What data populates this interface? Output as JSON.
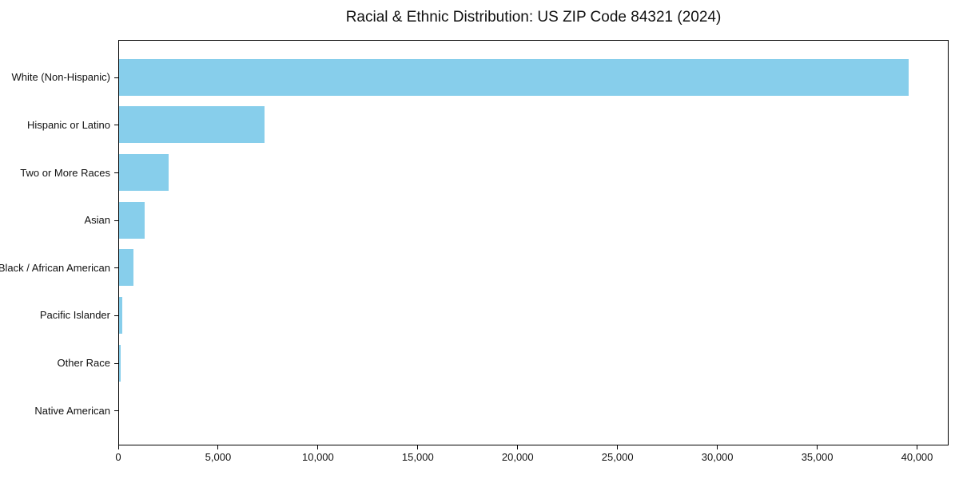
{
  "chart_data": {
    "type": "bar",
    "orientation": "horizontal",
    "title": "Racial & Ethnic Distribution: US ZIP Code 84321 (2024)",
    "categories": [
      "White (Non-Hispanic)",
      "Hispanic or Latino",
      "Two or More Races",
      "Asian",
      "Black / African American",
      "Pacific Islander",
      "Other Race",
      "Native American"
    ],
    "values": [
      39600,
      7300,
      2500,
      1300,
      720,
      150,
      100,
      0
    ],
    "xlabel": "",
    "ylabel": "",
    "xlim": [
      0,
      41580
    ],
    "x_ticks": [
      0,
      5000,
      10000,
      15000,
      20000,
      25000,
      30000,
      35000,
      40000
    ],
    "x_tick_labels": [
      "0",
      "5,000",
      "10,000",
      "15,000",
      "20,000",
      "25,000",
      "30,000",
      "35,000",
      "40,000"
    ],
    "bar_color": "#87CEEB",
    "background_color": "#ffffff",
    "spine_color": "#000000",
    "grid": false,
    "legend": null
  }
}
